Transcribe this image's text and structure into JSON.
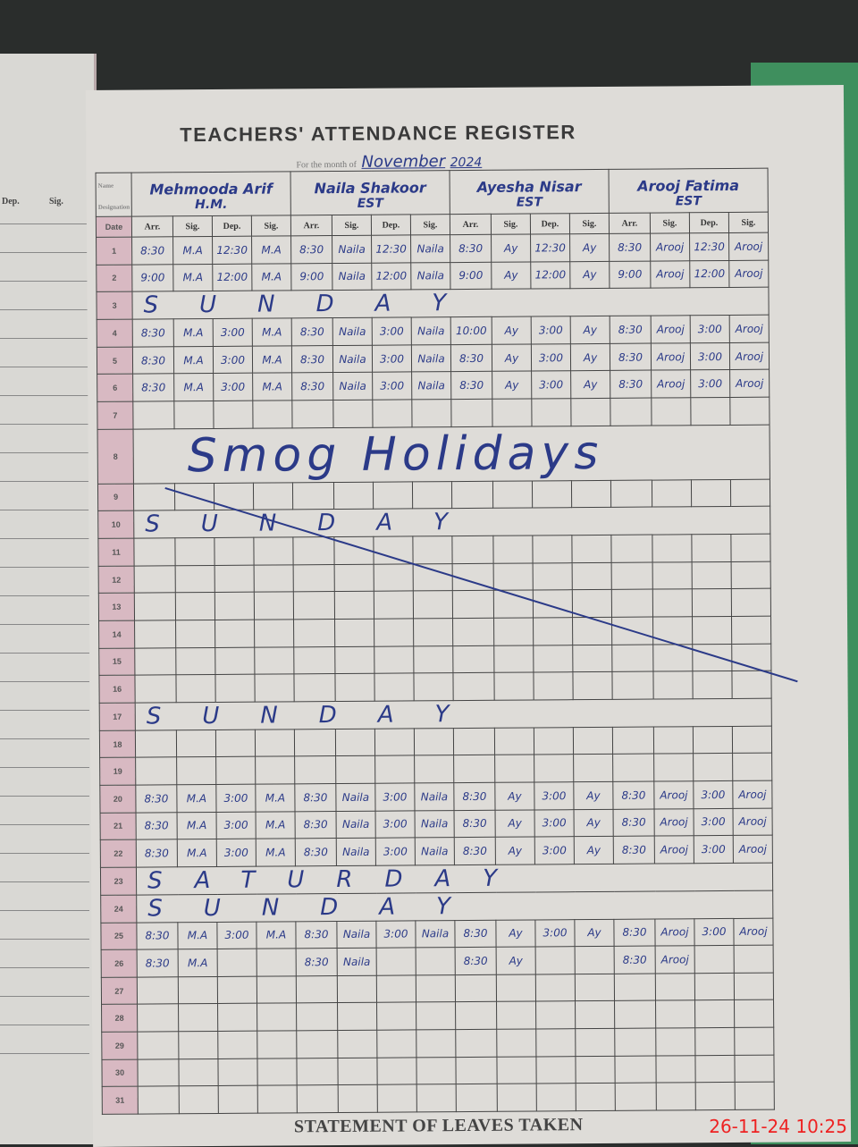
{
  "left_page": {
    "headers": [
      "Dep.",
      "Sig."
    ]
  },
  "title": "TEACHERS' ATTENDANCE REGISTER",
  "month_label": "For the month of",
  "month_value": "November",
  "year_value": "2024",
  "name_label": "Name",
  "designation_label": "Designation",
  "date_header": "Date",
  "col_headers": [
    "Arr.",
    "Sig.",
    "Dep.",
    "Sig."
  ],
  "teachers": [
    {
      "name": "Mehmooda Arif",
      "designation": "H.M."
    },
    {
      "name": "Naila Shakoor",
      "designation": "EST"
    },
    {
      "name": "Ayesha Nisar",
      "designation": "EST"
    },
    {
      "name": "Arooj Fatima",
      "designation": "EST"
    }
  ],
  "rows": [
    {
      "day": "1",
      "cells": [
        "8:30",
        "M.A",
        "12:30",
        "M.A",
        "8:30",
        "Naila",
        "12:30",
        "Naila",
        "8:30",
        "Ay",
        "12:30",
        "Ay",
        "8:30",
        "Arooj",
        "12:30",
        "Arooj"
      ]
    },
    {
      "day": "2",
      "cells": [
        "9:00",
        "M.A",
        "12:00",
        "M.A",
        "9:00",
        "Naila",
        "12:00",
        "Naila",
        "9:00",
        "Ay",
        "12:00",
        "Ay",
        "9:00",
        "Arooj",
        "12:00",
        "Arooj"
      ]
    },
    {
      "day": "3",
      "note": "SUNDAY"
    },
    {
      "day": "4",
      "cells": [
        "8:30",
        "M.A",
        "3:00",
        "M.A",
        "8:30",
        "Naila",
        "3:00",
        "Naila",
        "10:00",
        "Ay",
        "3:00",
        "Ay",
        "8:30",
        "Arooj",
        "3:00",
        "Arooj"
      ]
    },
    {
      "day": "5",
      "cells": [
        "8:30",
        "M.A",
        "3:00",
        "M.A",
        "8:30",
        "Naila",
        "3:00",
        "Naila",
        "8:30",
        "Ay",
        "3:00",
        "Ay",
        "8:30",
        "Arooj",
        "3:00",
        "Arooj"
      ]
    },
    {
      "day": "6",
      "cells": [
        "8:30",
        "M.A",
        "3:00",
        "M.A",
        "8:30",
        "Naila",
        "3:00",
        "Naila",
        "8:30",
        "Ay",
        "3:00",
        "Ay",
        "8:30",
        "Arooj",
        "3:00",
        "Arooj"
      ]
    },
    {
      "day": "7"
    },
    {
      "day": "8",
      "smog": "Smog Holidays"
    },
    {
      "day": "9"
    },
    {
      "day": "10",
      "note": "SUNDAY"
    },
    {
      "day": "11"
    },
    {
      "day": "12"
    },
    {
      "day": "13"
    },
    {
      "day": "14"
    },
    {
      "day": "15"
    },
    {
      "day": "16"
    },
    {
      "day": "17",
      "note": "SUNDAY"
    },
    {
      "day": "18"
    },
    {
      "day": "19"
    },
    {
      "day": "20",
      "cells": [
        "8:30",
        "M.A",
        "3:00",
        "M.A",
        "8:30",
        "Naila",
        "3:00",
        "Naila",
        "8:30",
        "Ay",
        "3:00",
        "Ay",
        "8:30",
        "Arooj",
        "3:00",
        "Arooj"
      ]
    },
    {
      "day": "21",
      "cells": [
        "8:30",
        "M.A",
        "3:00",
        "M.A",
        "8:30",
        "Naila",
        "3:00",
        "Naila",
        "8:30",
        "Ay",
        "3:00",
        "Ay",
        "8:30",
        "Arooj",
        "3:00",
        "Arooj"
      ]
    },
    {
      "day": "22",
      "cells": [
        "8:30",
        "M.A",
        "3:00",
        "M.A",
        "8:30",
        "Naila",
        "3:00",
        "Naila",
        "8:30",
        "Ay",
        "3:00",
        "Ay",
        "8:30",
        "Arooj",
        "3:00",
        "Arooj"
      ]
    },
    {
      "day": "23",
      "note": "SATURDAY"
    },
    {
      "day": "24",
      "note": "SUNDAY"
    },
    {
      "day": "25",
      "cells": [
        "8:30",
        "M.A",
        "3:00",
        "M.A",
        "8:30",
        "Naila",
        "3:00",
        "Naila",
        "8:30",
        "Ay",
        "3:00",
        "Ay",
        "8:30",
        "Arooj",
        "3:00",
        "Arooj"
      ]
    },
    {
      "day": "26",
      "cells": [
        "8:30",
        "M.A",
        "",
        "",
        "8:30",
        "Naila",
        "",
        "",
        "8:30",
        "Ay",
        "",
        "",
        "8:30",
        "Arooj",
        "",
        ""
      ]
    },
    {
      "day": "27"
    },
    {
      "day": "28"
    },
    {
      "day": "29"
    },
    {
      "day": "30"
    },
    {
      "day": "31"
    }
  ],
  "footer": "STATEMENT OF LEAVES TAKEN",
  "timestamp": "26-11-24  10:25",
  "colors": {
    "ink": "#2b3a88",
    "date_column": "#d8b9c2",
    "timestamp": "#e22222"
  }
}
